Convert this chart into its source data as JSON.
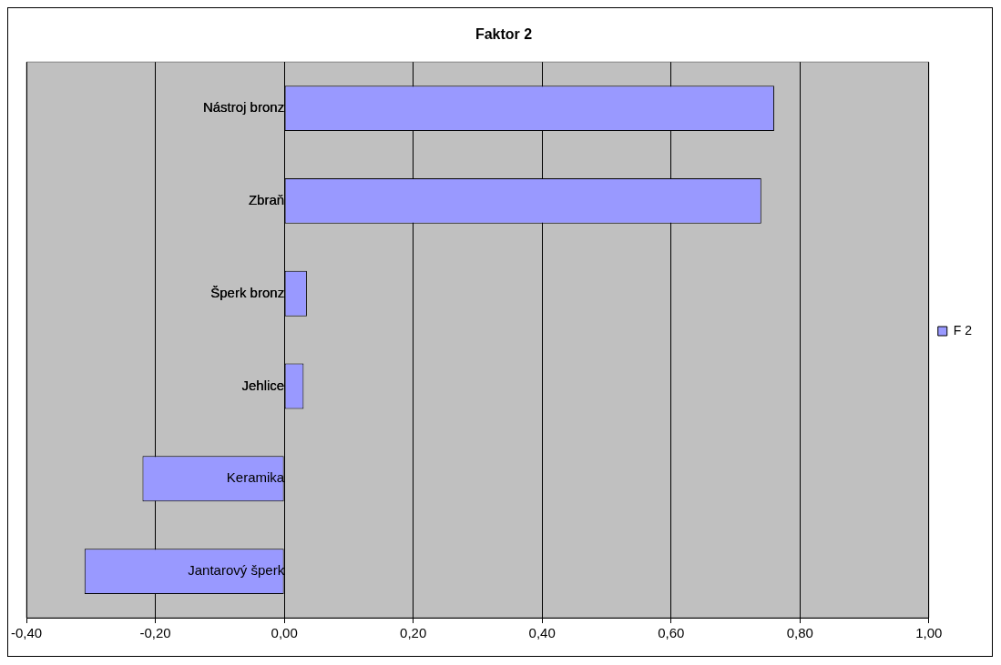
{
  "chart_data": {
    "type": "bar",
    "orientation": "horizontal",
    "title": "Faktor 2",
    "categories": [
      "Nástroj bronz",
      "Zbraň",
      "Šperk bronz",
      "Jehlice",
      "Keramika",
      "Jantarový šperk"
    ],
    "series": [
      {
        "name": "F 2",
        "color": "#9999ff",
        "values": [
          0.76,
          0.74,
          0.035,
          0.03,
          -0.22,
          -0.31
        ]
      }
    ],
    "xlim": [
      -0.4,
      1.0
    ],
    "xticks": [
      {
        "value": -0.4,
        "label": "-0,40"
      },
      {
        "value": -0.2,
        "label": "-0,20"
      },
      {
        "value": 0,
        "label": "0,00"
      },
      {
        "value": 0.2,
        "label": "0,20"
      },
      {
        "value": 0.4,
        "label": "0,40"
      },
      {
        "value": 0.6,
        "label": "0,60"
      },
      {
        "value": 0.8,
        "label": "0,80"
      },
      {
        "value": 1.0,
        "label": "1,00"
      }
    ],
    "grid": "x",
    "legend": "right"
  }
}
